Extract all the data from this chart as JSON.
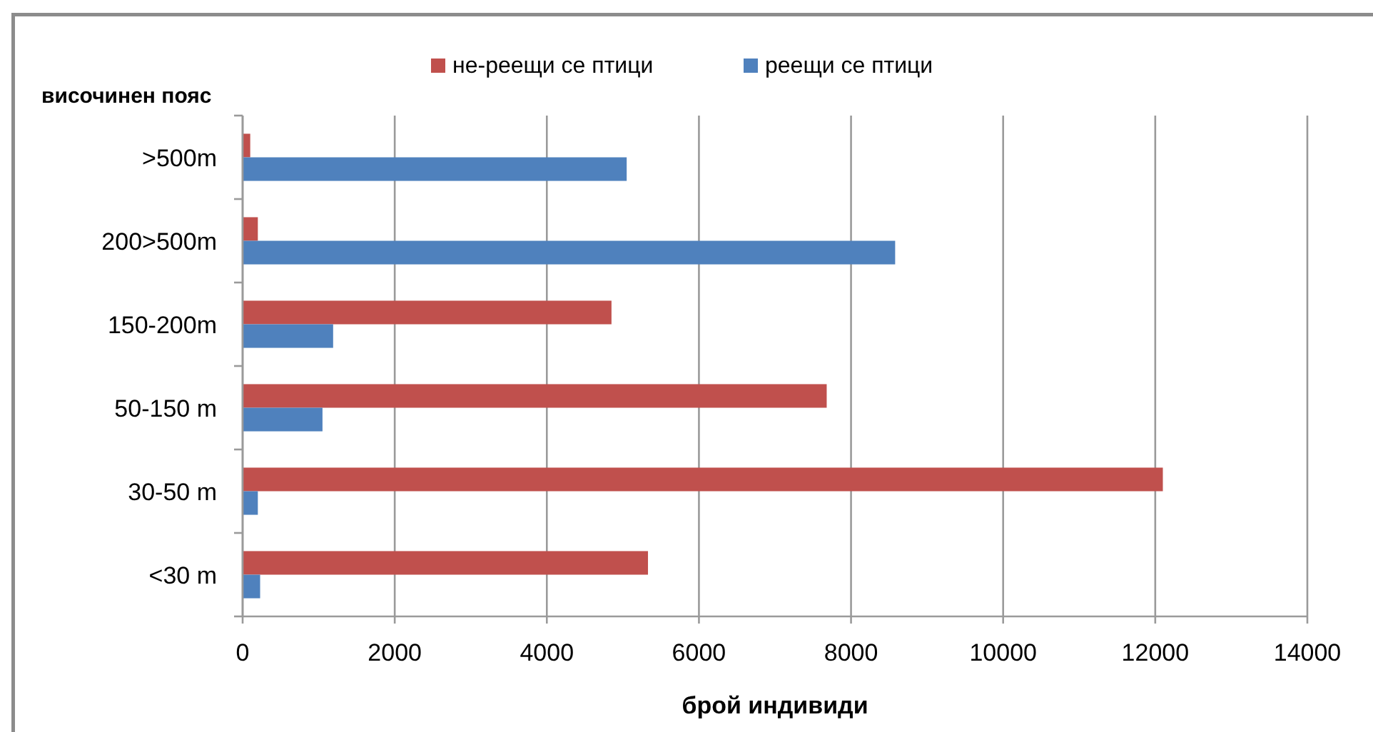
{
  "chart_data": {
    "type": "bar",
    "orientation": "horizontal",
    "xlabel": "брой индивиди",
    "ylabel": "височинен пояс",
    "categories": [
      ">500m",
      "200>500m",
      "150-200m",
      "50-150 m",
      "30-50 m",
      "<30 m"
    ],
    "series": [
      {
        "name": "не-реещи се птици",
        "color": "#c0504d",
        "values": [
          100,
          200,
          4850,
          7680,
          12100,
          5330
        ]
      },
      {
        "name": "реещи се птици",
        "color": "#4f81bd",
        "values": [
          5050,
          8580,
          1190,
          1050,
          200,
          230
        ]
      }
    ],
    "xlim": [
      0,
      14000
    ],
    "xticks": [
      0,
      2000,
      4000,
      6000,
      8000,
      10000,
      12000,
      14000
    ],
    "grid": "x",
    "legend": "top"
  }
}
